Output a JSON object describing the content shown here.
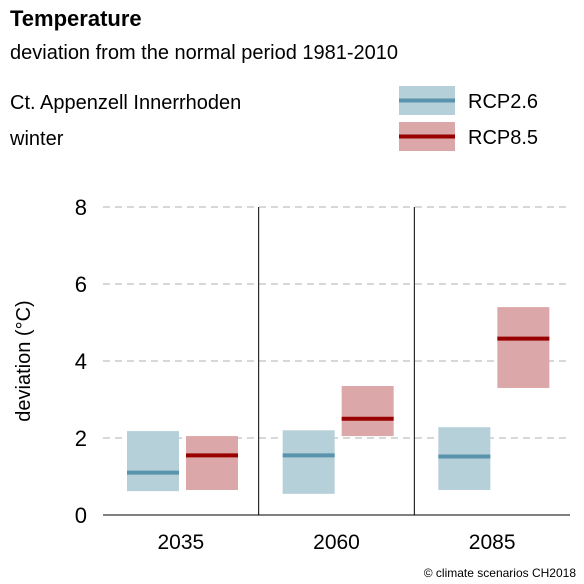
{
  "header": {
    "title": "Temperature",
    "subtitle": "deviation from the normal period 1981-2010",
    "region": "Ct. Appenzell Innerrhoden",
    "season": "winter"
  },
  "credit": "© climate scenarios CH2018",
  "colors": {
    "rcp26_box": "#b6d0d9",
    "rcp26_line": "#5a93ad",
    "rcp85_box": "#dca7a8",
    "rcp85_line": "#990000",
    "grid": "#b0b0b0"
  },
  "chart_data": {
    "type": "box-range",
    "xlabel": "",
    "ylabel": "deviation (°C)",
    "ylim": [
      0,
      8
    ],
    "yticks": [
      0,
      2,
      4,
      6,
      8
    ],
    "grid": true,
    "legend_position": "top-right",
    "categories": [
      "2035",
      "2060",
      "2085"
    ],
    "series": [
      {
        "name": "RCP2.6",
        "low": [
          0.62,
          0.55,
          0.65
        ],
        "median": [
          1.1,
          1.55,
          1.52
        ],
        "high": [
          2.18,
          2.2,
          2.28
        ]
      },
      {
        "name": "RCP8.5",
        "low": [
          0.65,
          2.05,
          3.3
        ],
        "median": [
          1.55,
          2.5,
          4.58
        ],
        "high": [
          2.05,
          3.35,
          5.4
        ]
      }
    ]
  }
}
